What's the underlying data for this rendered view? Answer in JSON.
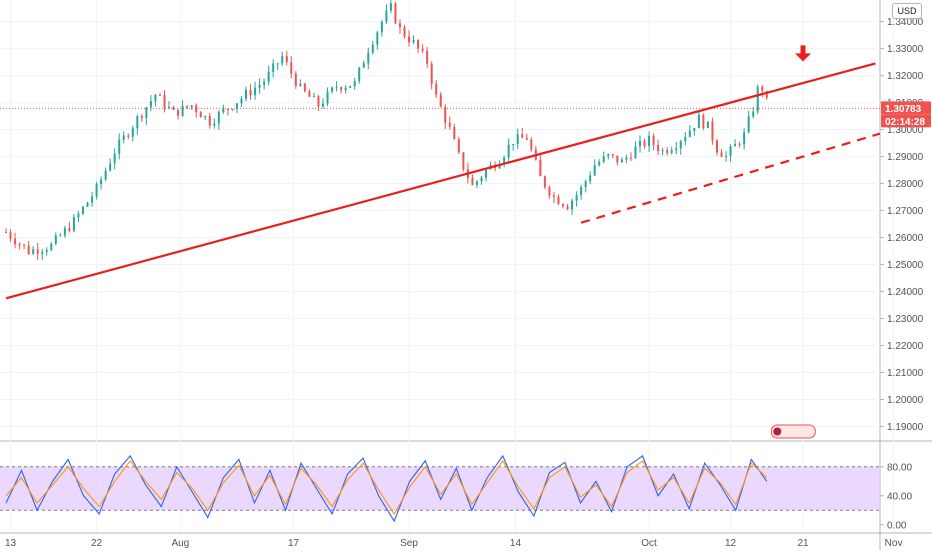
{
  "currency": "USD",
  "last_price_label": "1.30783",
  "countdown_label": "02:14:28",
  "colors": {
    "up": "#26a69a",
    "down": "#ef5350",
    "trendline": "#e91e1e",
    "stoch_k": "#2962ff",
    "stoch_d": "#ff9800",
    "band_fill": "#e3c8ff"
  },
  "chart_data": [
    {
      "type": "candlestick",
      "title": "",
      "x_tick_labels": [
        "13",
        "22",
        "Aug",
        "17",
        "Sep",
        "14",
        "Oct",
        "12",
        "21",
        "Nov"
      ],
      "y_tick_labels": [
        "1.34000",
        "1.33000",
        "1.32000",
        "1.31000",
        "1.30000",
        "1.29000",
        "1.28000",
        "1.27000",
        "1.26000",
        "1.25000",
        "1.24000",
        "1.23000",
        "1.22000",
        "1.21000",
        "1.20000",
        "1.19000"
      ],
      "ylim": [
        1.185,
        1.348
      ],
      "grid": true,
      "last_price": 1.30783,
      "approx_path": [
        [
          0,
          1.262
        ],
        [
          10,
          1.255
        ],
        [
          20,
          1.257
        ],
        [
          30,
          1.266
        ],
        [
          40,
          1.278
        ],
        [
          48,
          1.292
        ],
        [
          58,
          1.304
        ],
        [
          66,
          1.313
        ],
        [
          74,
          1.306
        ],
        [
          82,
          1.309
        ],
        [
          90,
          1.303
        ],
        [
          98,
          1.308
        ],
        [
          106,
          1.313
        ],
        [
          114,
          1.318
        ],
        [
          122,
          1.327
        ],
        [
          130,
          1.315
        ],
        [
          138,
          1.309
        ],
        [
          146,
          1.316
        ],
        [
          154,
          1.317
        ],
        [
          160,
          1.33
        ],
        [
          166,
          1.34
        ],
        [
          170,
          1.345
        ],
        [
          174,
          1.337
        ],
        [
          180,
          1.332
        ],
        [
          186,
          1.325
        ],
        [
          190,
          1.312
        ],
        [
          196,
          1.3
        ],
        [
          200,
          1.29
        ],
        [
          206,
          1.279
        ],
        [
          212,
          1.285
        ],
        [
          218,
          1.289
        ],
        [
          224,
          1.296
        ],
        [
          230,
          1.297
        ],
        [
          236,
          1.282
        ],
        [
          242,
          1.275
        ],
        [
          248,
          1.272
        ],
        [
          254,
          1.278
        ],
        [
          260,
          1.287
        ],
        [
          266,
          1.29
        ],
        [
          272,
          1.288
        ],
        [
          278,
          1.293
        ],
        [
          284,
          1.296
        ],
        [
          290,
          1.292
        ],
        [
          296,
          1.295
        ],
        [
          302,
          1.3
        ],
        [
          306,
          1.304
        ],
        [
          310,
          1.301
        ],
        [
          314,
          1.293
        ],
        [
          318,
          1.29
        ],
        [
          322,
          1.294
        ],
        [
          326,
          1.298
        ],
        [
          330,
          1.308
        ],
        [
          333,
          1.318
        ],
        [
          336,
          1.31
        ]
      ],
      "annotations": {
        "resistance_line": [
          [
            0,
            1.2375
          ],
          [
            384,
            1.3245
          ]
        ],
        "support_line_dashed": [
          [
            254,
            1.2655
          ],
          [
            386,
            1.2985
          ]
        ],
        "arrow_marker": [
          352,
          1.326
        ]
      }
    },
    {
      "type": "line",
      "title": "",
      "y_tick_labels": [
        "80.00",
        "40.00",
        "0.00"
      ],
      "ylim": [
        -10,
        110
      ],
      "band": [
        20,
        80
      ],
      "series": [
        {
          "values": [
            30,
            75,
            20,
            60,
            90,
            40,
            15,
            70,
            95,
            55,
            25,
            80,
            45,
            10,
            65,
            90,
            30,
            75,
            20,
            85,
            50,
            15,
            70,
            92,
            40,
            5,
            60,
            88,
            35,
            78,
            20,
            65,
            95,
            45,
            12,
            72,
            86,
            30,
            60,
            18,
            80,
            95,
            40,
            70,
            22,
            85,
            55,
            20,
            90,
            60
          ]
        },
        {
          "values": [
            40,
            65,
            30,
            55,
            80,
            50,
            25,
            60,
            88,
            60,
            35,
            72,
            50,
            20,
            58,
            82,
            40,
            68,
            28,
            78,
            55,
            25,
            62,
            85,
            48,
            15,
            52,
            80,
            42,
            70,
            28,
            58,
            88,
            52,
            22,
            65,
            80,
            38,
            55,
            25,
            72,
            88,
            48,
            65,
            30,
            78,
            58,
            28,
            85,
            65
          ]
        }
      ]
    }
  ]
}
